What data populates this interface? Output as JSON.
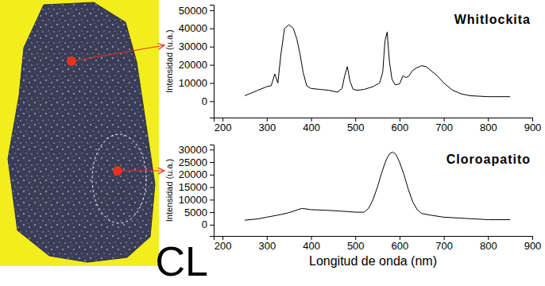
{
  "chart_data": [
    {
      "type": "line",
      "title": "Whitlockita",
      "y_label": "Intensidad (u.a.)",
      "color": "#000000",
      "grid": false,
      "x": [
        250,
        280,
        300,
        310,
        318,
        325,
        332,
        340,
        350,
        360,
        368,
        375,
        382,
        390,
        400,
        420,
        440,
        460,
        470,
        476,
        482,
        488,
        495,
        505,
        520,
        540,
        555,
        562,
        567,
        572,
        577,
        583,
        590,
        600,
        608,
        614,
        620,
        630,
        640,
        650,
        660,
        670,
        685,
        700,
        720,
        740,
        760,
        800,
        850
      ],
      "values": [
        3000,
        6000,
        8000,
        8500,
        15000,
        10000,
        26000,
        40000,
        42000,
        40000,
        34000,
        26000,
        16000,
        8500,
        7000,
        6500,
        6000,
        5000,
        7000,
        14000,
        19000,
        11000,
        6500,
        6000,
        6500,
        8000,
        10000,
        16000,
        33000,
        38000,
        22000,
        12000,
        9000,
        9500,
        14000,
        13000,
        13500,
        17000,
        18500,
        19500,
        19000,
        17000,
        14000,
        10000,
        6000,
        4000,
        3000,
        2500,
        2500
      ],
      "xlim": [
        180,
        900
      ],
      "xticks": [
        200,
        300,
        400,
        500,
        600,
        700,
        800,
        900
      ],
      "ylim": [
        -9000,
        53000
      ],
      "yticks": [
        0,
        10000,
        20000,
        30000,
        40000,
        50000
      ]
    },
    {
      "type": "line",
      "title": "Cloroapatito",
      "y_label": "Intensidad (u.a.)",
      "x_label": "Longitud de onda (nm)",
      "annotation": "CL",
      "color": "#000000",
      "grid": false,
      "x": [
        250,
        280,
        300,
        330,
        350,
        370,
        380,
        400,
        430,
        460,
        500,
        520,
        530,
        540,
        550,
        560,
        570,
        578,
        585,
        592,
        600,
        610,
        620,
        630,
        640,
        650,
        670,
        700,
        750,
        800,
        850
      ],
      "values": [
        1800,
        2300,
        3000,
        4000,
        4800,
        6000,
        6500,
        6000,
        5800,
        5500,
        5000,
        5000,
        6500,
        10000,
        15000,
        21000,
        26000,
        28500,
        29000,
        28000,
        25000,
        20000,
        14000,
        9000,
        6000,
        4500,
        3800,
        3000,
        2500,
        2000,
        2000
      ],
      "xlim": [
        180,
        900
      ],
      "xticks": [
        200,
        300,
        400,
        500,
        600,
        700,
        800,
        900
      ],
      "ylim": [
        -4500,
        32000
      ],
      "yticks": [
        0,
        5000,
        10000,
        15000,
        20000,
        25000,
        30000
      ]
    }
  ]
}
